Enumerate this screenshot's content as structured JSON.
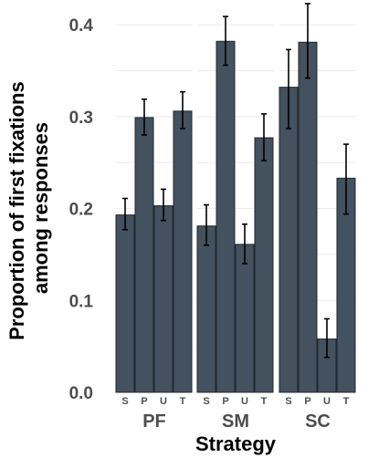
{
  "chart_data": {
    "type": "bar",
    "xlabel": "Strategy",
    "ylabel_lines": [
      "Proportion of first fixations",
      "among responses"
    ],
    "ylim": [
      0,
      0.42
    ],
    "yticks": [
      {
        "value": 0.0,
        "label": "0.0"
      },
      {
        "value": 0.1,
        "label": "0.1"
      },
      {
        "value": 0.2,
        "label": "0.2"
      },
      {
        "value": 0.3,
        "label": "0.3"
      },
      {
        "value": 0.4,
        "label": "0.4"
      }
    ],
    "grid": true,
    "bar_color": "#44515e",
    "categories": [
      "S",
      "P",
      "U",
      "T"
    ],
    "facets": [
      {
        "name": "PF",
        "bars": [
          {
            "category": "S",
            "value": 0.193,
            "err_low": 0.177,
            "err_high": 0.211
          },
          {
            "category": "P",
            "value": 0.299,
            "err_low": 0.28,
            "err_high": 0.319
          },
          {
            "category": "U",
            "value": 0.203,
            "err_low": 0.187,
            "err_high": 0.221
          },
          {
            "category": "T",
            "value": 0.306,
            "err_low": 0.287,
            "err_high": 0.327
          }
        ]
      },
      {
        "name": "SM",
        "bars": [
          {
            "category": "S",
            "value": 0.181,
            "err_low": 0.16,
            "err_high": 0.204
          },
          {
            "category": "P",
            "value": 0.382,
            "err_low": 0.356,
            "err_high": 0.409
          },
          {
            "category": "U",
            "value": 0.161,
            "err_low": 0.14,
            "err_high": 0.183
          },
          {
            "category": "T",
            "value": 0.277,
            "err_low": 0.252,
            "err_high": 0.303
          }
        ]
      },
      {
        "name": "SC",
        "bars": [
          {
            "category": "S",
            "value": 0.332,
            "err_low": 0.287,
            "err_high": 0.373
          },
          {
            "category": "P",
            "value": 0.381,
            "err_low": 0.342,
            "err_high": 0.423
          },
          {
            "category": "U",
            "value": 0.058,
            "err_low": 0.038,
            "err_high": 0.08
          },
          {
            "category": "T",
            "value": 0.233,
            "err_low": 0.194,
            "err_high": 0.27
          }
        ]
      }
    ]
  }
}
